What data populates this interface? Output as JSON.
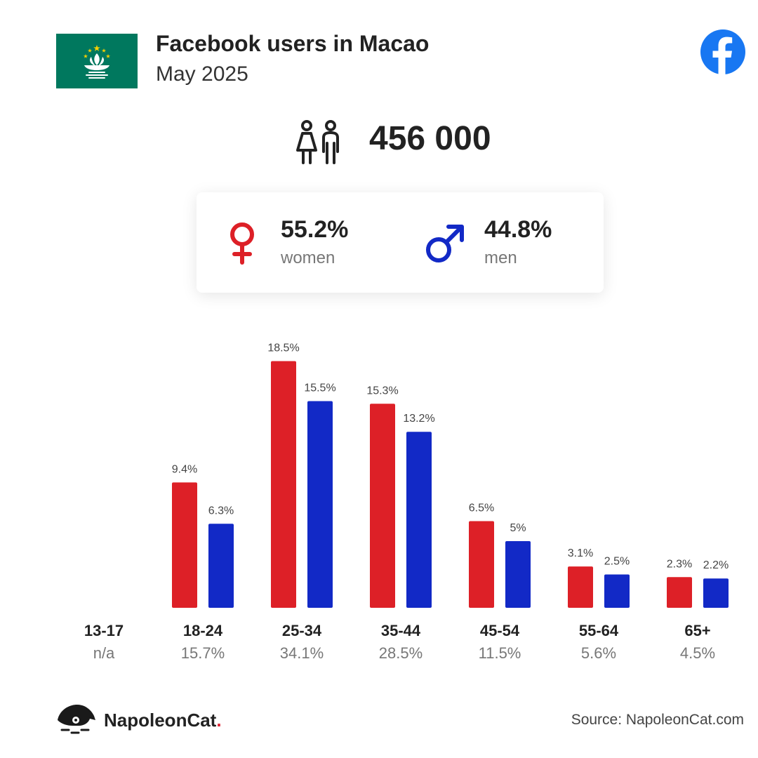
{
  "header": {
    "title": "Facebook users in Macao",
    "subtitle": "May 2025"
  },
  "icons": {
    "flag": "macao-flag-icon",
    "platform": "facebook-logo-icon",
    "users": "users-icon",
    "female": "female-symbol-icon",
    "male": "male-symbol-icon",
    "brand": "napoleoncat-logo-icon"
  },
  "total_users": "456 000",
  "gender": {
    "women": {
      "percent": "55.2%",
      "label": "women"
    },
    "men": {
      "percent": "44.8%",
      "label": "men"
    }
  },
  "colors": {
    "women": "#dd2027",
    "men": "#1229c6",
    "flag_green": "#00785e",
    "facebook": "#1877f2"
  },
  "chart_data": {
    "type": "bar",
    "categories": [
      "13-17",
      "18-24",
      "25-34",
      "35-44",
      "45-54",
      "55-64",
      "65+"
    ],
    "category_shares": [
      "n/a",
      "15.7%",
      "34.1%",
      "28.5%",
      "11.5%",
      "5.6%",
      "4.5%"
    ],
    "series": [
      {
        "name": "women",
        "values": [
          null,
          9.4,
          18.5,
          15.3,
          6.5,
          3.1,
          2.3
        ],
        "labels": [
          "",
          "9.4%",
          "18.5%",
          "15.3%",
          "6.5%",
          "3.1%",
          "2.3%"
        ]
      },
      {
        "name": "men",
        "values": [
          null,
          6.3,
          15.5,
          13.2,
          5,
          2.5,
          2.2
        ],
        "labels": [
          "",
          "6.3%",
          "15.5%",
          "13.2%",
          "5%",
          "2.5%",
          "2.2%"
        ]
      }
    ],
    "grid": false,
    "legend": "none"
  },
  "footer": {
    "brand_name": "NapoleonCat",
    "brand_dot": ".",
    "source": "Source: NapoleonCat.com"
  }
}
